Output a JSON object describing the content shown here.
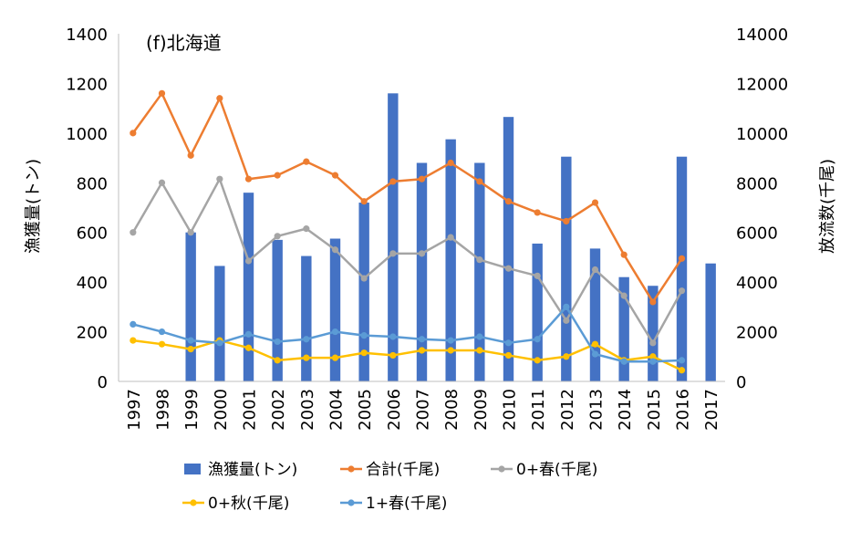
{
  "chart_data": {
    "type": "bar+line",
    "title": "(f)北海道",
    "categories": [
      "1997",
      "1998",
      "1999",
      "2000",
      "2001",
      "2002",
      "2003",
      "2004",
      "2005",
      "2006",
      "2007",
      "2008",
      "2009",
      "2010",
      "2011",
      "2012",
      "2013",
      "2014",
      "2015",
      "2016",
      "2017"
    ],
    "ylabel_left": "漁獲量(トン)",
    "ylabel_right": "放流数(千尾)",
    "ylim_left": [
      0,
      1400
    ],
    "ylim_right": [
      0,
      14000
    ],
    "yticks_left": [
      "0",
      "200",
      "400",
      "600",
      "800",
      "1000",
      "1200",
      "1400"
    ],
    "yticks_right": [
      "0",
      "2000",
      "4000",
      "6000",
      "8000",
      "10000",
      "12000",
      "14000"
    ],
    "legend_position": "bottom",
    "colors": {
      "bar": "#4472c4",
      "total": "#ed7d31",
      "zero_spring": "#a5a5a5",
      "zero_autumn": "#ffc000",
      "one_spring": "#5b9bd5"
    },
    "bar_series": {
      "name": "漁獲量(トン)",
      "axis": "left",
      "values": [
        null,
        null,
        600,
        465,
        760,
        570,
        505,
        575,
        720,
        1160,
        880,
        975,
        880,
        1065,
        555,
        905,
        535,
        420,
        385,
        905,
        475
      ]
    },
    "line_series": [
      {
        "name": "合計(千尾)",
        "key": "total",
        "axis": "right",
        "values": [
          10000,
          11600,
          9100,
          11400,
          8150,
          8300,
          8850,
          8300,
          7250,
          8050,
          8150,
          8800,
          8050,
          7250,
          6800,
          6450,
          7200,
          5100,
          3200,
          4950,
          null
        ]
      },
      {
        "name": "0+春(千尾)",
        "key": "zero_spring",
        "axis": "right",
        "values": [
          6000,
          8000,
          6000,
          8150,
          4850,
          5850,
          6150,
          5300,
          4150,
          5150,
          5150,
          5800,
          4900,
          4550,
          4250,
          2450,
          4500,
          3450,
          1550,
          3650,
          null
        ]
      },
      {
        "name": "0+秋(千尾)",
        "key": "zero_autumn",
        "axis": "right",
        "values": [
          1650,
          1500,
          1300,
          1650,
          1350,
          850,
          950,
          950,
          1150,
          1050,
          1250,
          1250,
          1250,
          1050,
          850,
          1000,
          1500,
          850,
          1000,
          450,
          null
        ]
      },
      {
        "name": "1+春(千尾)",
        "key": "one_spring",
        "axis": "right",
        "values": [
          2300,
          2000,
          1650,
          1550,
          1900,
          1600,
          1700,
          2000,
          1850,
          1800,
          1700,
          1650,
          1800,
          1550,
          1700,
          3000,
          1100,
          800,
          800,
          850,
          null
        ]
      }
    ],
    "legend": [
      {
        "label": "漁獲量(トン)",
        "kind": "bar",
        "key": "bar"
      },
      {
        "label": "合計(千尾)",
        "kind": "line",
        "key": "total"
      },
      {
        "label": "0+春(千尾)",
        "kind": "line",
        "key": "zero_spring"
      },
      {
        "label": "0+秋(千尾)",
        "kind": "line",
        "key": "zero_autumn"
      },
      {
        "label": "1+春(千尾)",
        "kind": "line",
        "key": "one_spring"
      }
    ]
  }
}
